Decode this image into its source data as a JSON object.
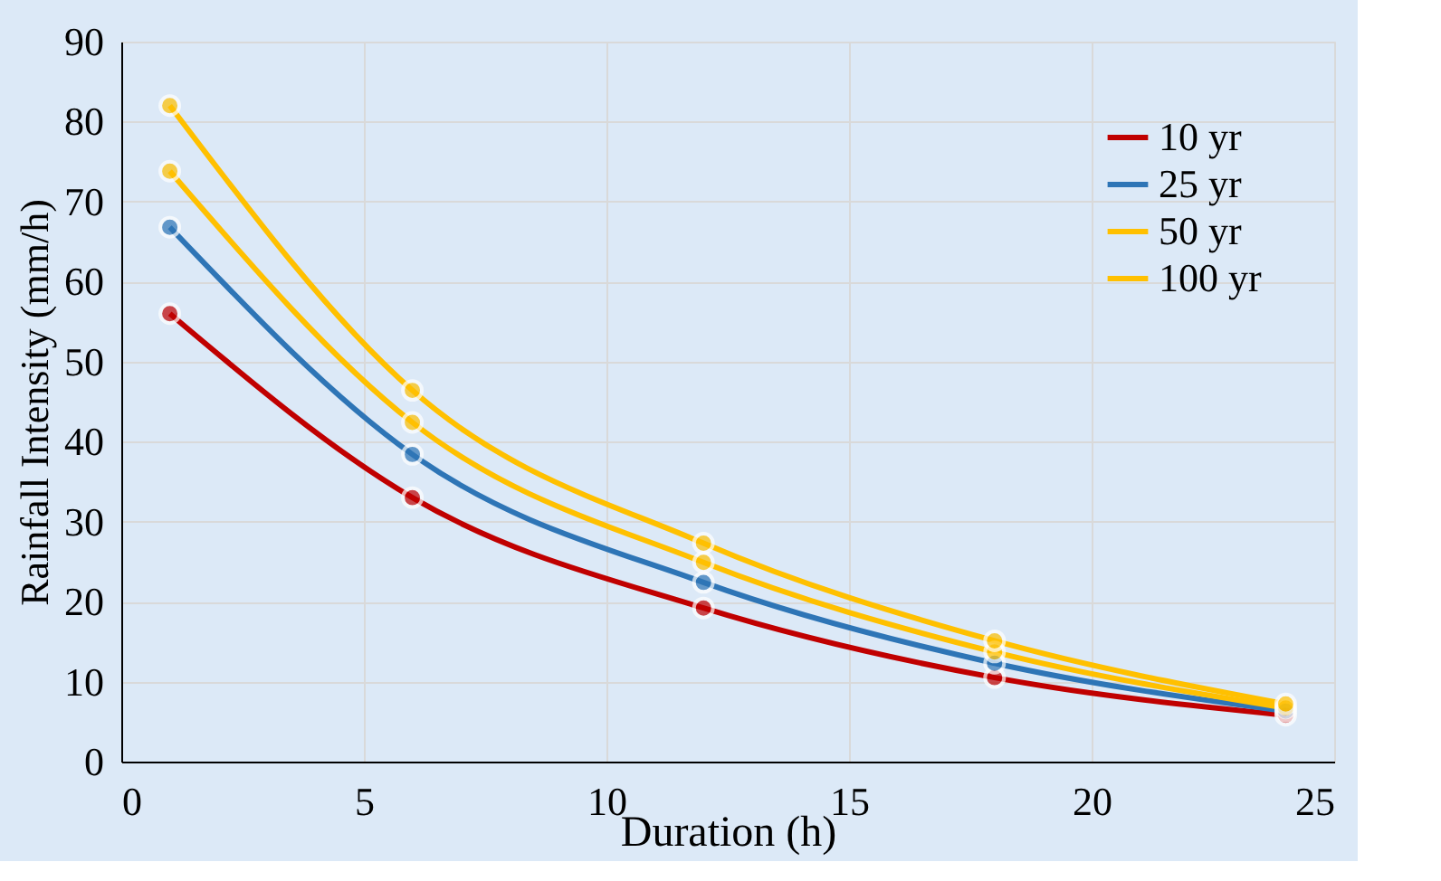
{
  "chart_data": {
    "type": "line",
    "xlabel": "Duration (h)",
    "ylabel": "Rainfall Intensity (mm/h)",
    "x": [
      1,
      6,
      12,
      18,
      24
    ],
    "series": [
      {
        "name": "10 yr",
        "color": "#c00000",
        "values": [
          56,
          33,
          19.2,
          10.5,
          5.8
        ]
      },
      {
        "name": "25 yr",
        "color": "#2e75b6",
        "values": [
          66.8,
          38.4,
          22.4,
          12.3,
          6.3
        ]
      },
      {
        "name": "50 yr",
        "color": "#ffc000",
        "values": [
          73.8,
          42.4,
          24.9,
          13.7,
          6.7
        ]
      },
      {
        "name": "100 yr",
        "color": "#ffc000",
        "values": [
          82,
          46.4,
          27.3,
          15.1,
          7.2
        ]
      }
    ],
    "xlim": [
      0,
      25
    ],
    "xticks": [
      0,
      5,
      10,
      15,
      20,
      25
    ],
    "ylim": [
      0,
      90
    ],
    "yticks": [
      0,
      10,
      20,
      30,
      40,
      50,
      60,
      70,
      80,
      90
    ],
    "grid": true,
    "legend": "top right",
    "marker": "circle",
    "line_style": "solid"
  }
}
